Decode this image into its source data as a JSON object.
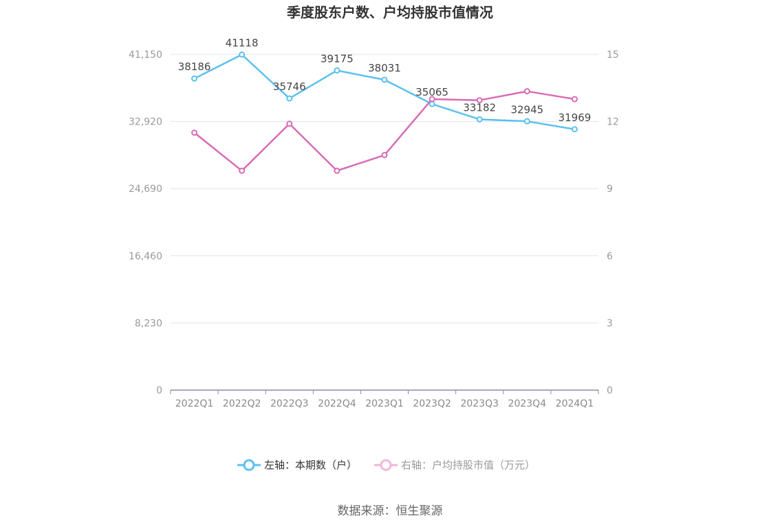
{
  "chart_data": {
    "type": "line",
    "title": "季度股东户数、户均持股市值情况",
    "categories": [
      "2022Q1",
      "2022Q2",
      "2022Q3",
      "2022Q4",
      "2023Q1",
      "2023Q2",
      "2023Q3",
      "2023Q4",
      "2024Q1"
    ],
    "y_left": {
      "min": 0,
      "max": 41150,
      "ticks": [
        "0",
        "8,230",
        "16,460",
        "24,690",
        "32,920",
        "41,150"
      ]
    },
    "y_right": {
      "min": 0,
      "max": 15,
      "ticks": [
        "0",
        "3",
        "6",
        "9",
        "12",
        "15"
      ]
    },
    "grid": true,
    "legend_position": "bottom",
    "series": [
      {
        "name": "左轴：本期数（户）",
        "axis": "left",
        "color": "#5bc0ef",
        "values": [
          38186,
          41118,
          35746,
          39175,
          38031,
          35065,
          33182,
          32945,
          31969
        ],
        "labels": [
          "38186",
          "41118",
          "35746",
          "39175",
          "38031",
          "35065",
          "33182",
          "32945",
          "31969"
        ]
      },
      {
        "name": "右轴：户均持股市值（万元）",
        "axis": "right",
        "color": "#d96bb5",
        "values": [
          11.5,
          9.8,
          11.9,
          9.8,
          10.5,
          13.0,
          12.95,
          13.35,
          13.0
        ]
      }
    ]
  },
  "source_text": "数据来源：恒生聚源"
}
